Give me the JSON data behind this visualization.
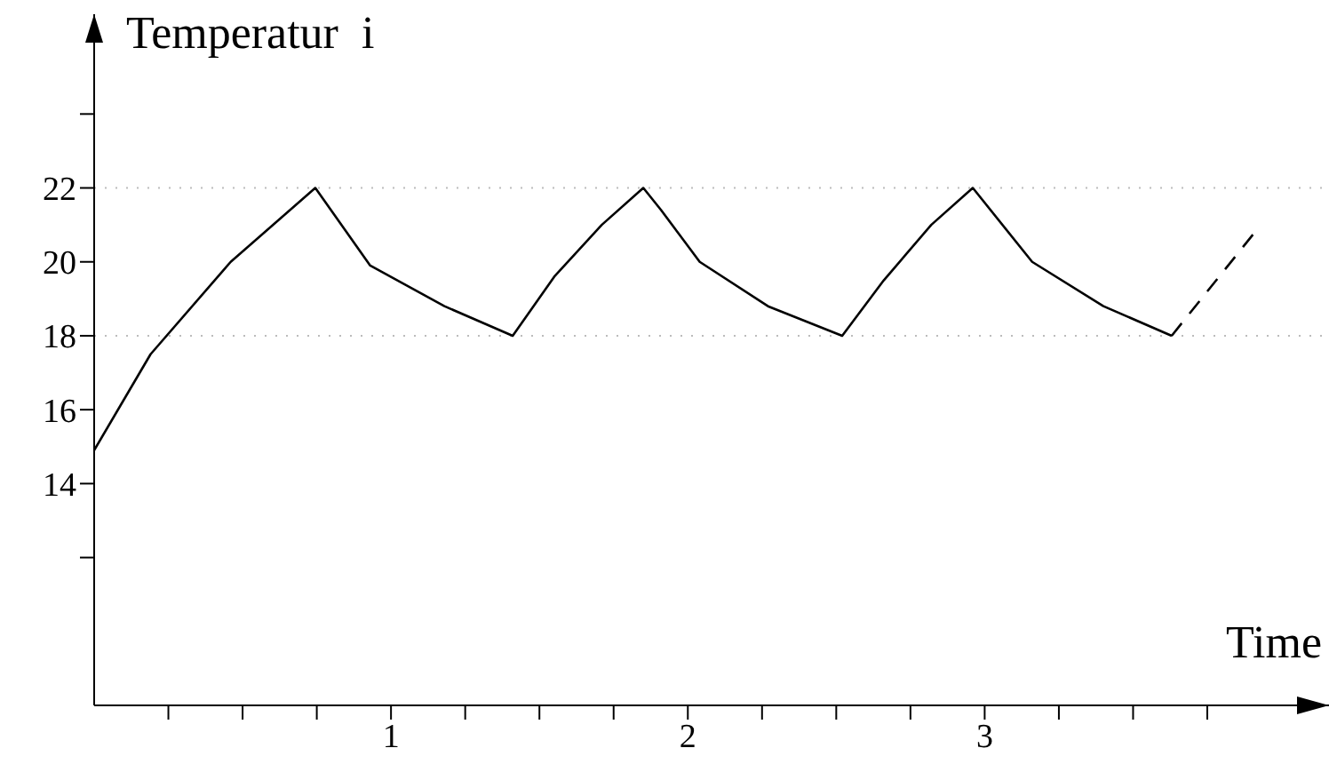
{
  "chart_data": {
    "type": "line",
    "xlabel": "Time",
    "ylabel": "Temperatur  i",
    "xlim": [
      0,
      4.16
    ],
    "ylim": [
      8,
      26.7
    ],
    "xticks": [
      {
        "value": 0.25,
        "label": null
      },
      {
        "value": 0.5,
        "label": null
      },
      {
        "value": 0.75,
        "label": null
      },
      1,
      {
        "value": 1.25,
        "label": null
      },
      {
        "value": 1.5,
        "label": null
      },
      {
        "value": 1.75,
        "label": null
      },
      2,
      {
        "value": 2.25,
        "label": null
      },
      {
        "value": 2.5,
        "label": null
      },
      {
        "value": 2.75,
        "label": null
      },
      3,
      {
        "value": 3.25,
        "label": null
      },
      {
        "value": 3.5,
        "label": null
      },
      {
        "value": 3.75,
        "label": null
      }
    ],
    "yticks": [
      {
        "value": 12,
        "label": null
      },
      14,
      16,
      18,
      20,
      22,
      {
        "value": 24,
        "label": null
      }
    ],
    "grid": false,
    "marker": "none",
    "ref_lines": [
      {
        "axis": "y",
        "value": 18,
        "color": "#bbbbbb",
        "line_style": "dotted"
      },
      {
        "axis": "y",
        "value": 22,
        "color": "#bbbbbb",
        "line_style": "dotted"
      }
    ],
    "series": [
      {
        "color": "#000000",
        "line_style": "solid",
        "x": [
          0,
          0.19,
          0.46,
          0.745,
          0.93,
          1.18,
          1.41,
          1.55,
          1.71,
          1.85,
          1.91,
          2.04,
          2.27,
          2.52,
          2.66,
          2.82,
          2.96,
          3.16,
          3.4,
          3.63
        ],
        "values": [
          14.9,
          17.5,
          20,
          22,
          19.9,
          18.8,
          18,
          19.6,
          21,
          22,
          21.4,
          20,
          18.8,
          18,
          19.5,
          21,
          22,
          20,
          18.8,
          18
        ]
      },
      {
        "color": "#000000",
        "line_style": "dashed",
        "x": [
          3.63,
          3.92
        ],
        "values": [
          18,
          20.9
        ]
      }
    ]
  }
}
